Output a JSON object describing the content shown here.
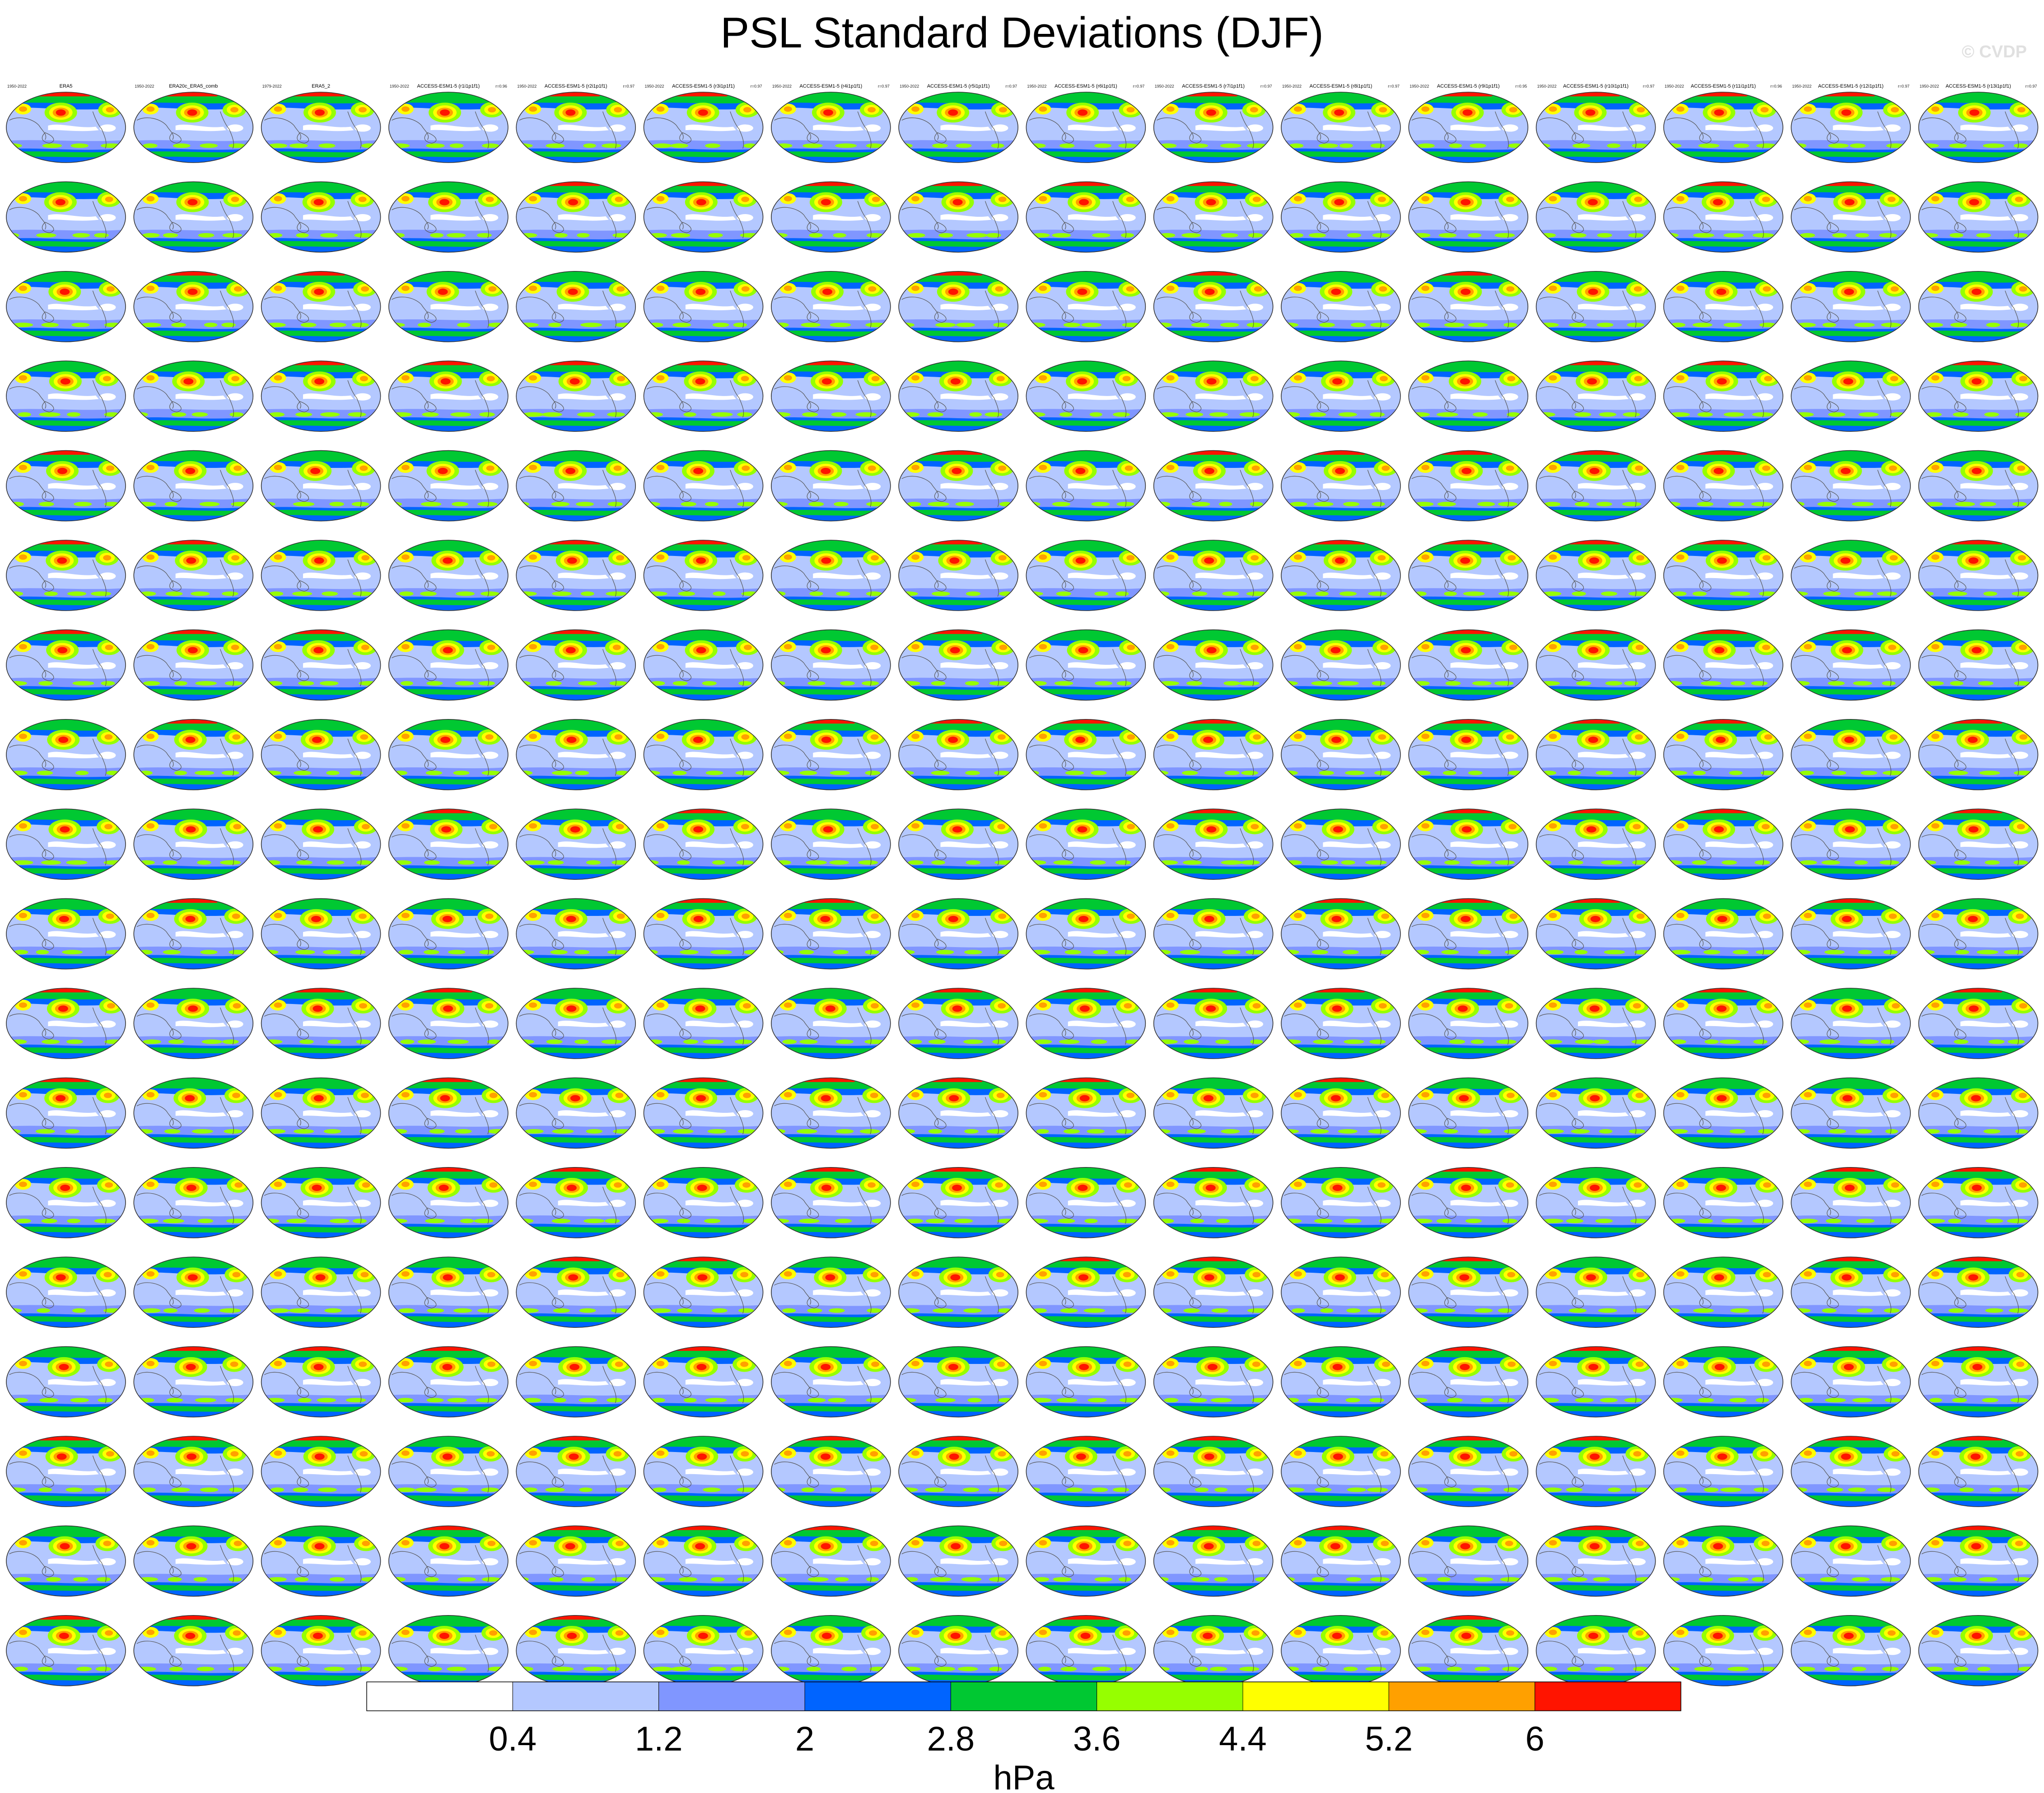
{
  "title": "PSL Standard Deviations (DJF)",
  "watermark": "© CVDP",
  "chart_data": {
    "type": "heatmap",
    "layout": "small-multiples grid of global map panels",
    "grid": {
      "rows": 18,
      "cols": 16
    },
    "year_range": "1950-2022",
    "panels_first_row": [
      {
        "title": "ERA5",
        "years": "1950-2022"
      },
      {
        "title": "ERA20c_ERA5_comb",
        "years": "1950-2022"
      },
      {
        "title": "ERA5_2",
        "years": "1979-2022"
      },
      {
        "title": "ACCESS-ESM1-5 (r1i1p1f1)",
        "years": "1950-2022",
        "r": "r=0.96"
      },
      {
        "title": "ACCESS-ESM1-5 (r2i1p1f1)",
        "years": "1950-2022",
        "r": "r=0.97"
      },
      {
        "title": "ACCESS-ESM1-5 (r3i1p1f1)",
        "years": "1950-2022",
        "r": "r=0.97"
      },
      {
        "title": "ACCESS-ESM1-5 (r4i1p1f1)",
        "years": "1950-2022",
        "r": "r=0.97"
      },
      {
        "title": "ACCESS-ESM1-5 (r5i1p1f1)",
        "years": "1950-2022",
        "r": "r=0.97"
      },
      {
        "title": "ACCESS-ESM1-5 (r6i1p1f1)",
        "years": "1950-2022",
        "r": "r=0.97"
      },
      {
        "title": "ACCESS-ESM1-5 (r7i1p1f1)",
        "years": "1950-2022",
        "r": "r=0.97"
      },
      {
        "title": "ACCESS-ESM1-5 (r8i1p1f1)",
        "years": "1950-2022",
        "r": "r=0.97"
      },
      {
        "title": "ACCESS-ESM1-5 (r9i1p1f1)",
        "years": "1950-2022",
        "r": "r=0.95"
      },
      {
        "title": "ACCESS-ESM1-5 (r10i1p1f1)",
        "years": "1950-2022",
        "r": "r=0.97"
      },
      {
        "title": "ACCESS-ESM1-5 (r11i1p1f1)",
        "years": "1950-2022",
        "r": "r=0.96"
      },
      {
        "title": "ACCESS-ESM1-5 (r12i1p1f1)",
        "years": "1950-2022",
        "r": "r=0.97"
      },
      {
        "title": "ACCESS-ESM1-5 (r13i1p1f1)",
        "years": "1950-2022",
        "r": "r=0.97"
      }
    ],
    "row_title_colors": [
      "#000000",
      "#1f9b2f",
      "#1f9b2f",
      "#33bb33",
      "#33bb33",
      "#33bb33",
      "#33bb33",
      "#e8a000",
      "#e8a000",
      "#cc0000",
      "#cc0000",
      "#cc0000",
      "#cc0000",
      "#cc0000",
      "#cc0000",
      "#cc0000",
      "#e8c800",
      "#e8c800"
    ],
    "colorbar": {
      "levels": [
        0.4,
        1.2,
        2,
        2.8,
        3.6,
        4.4,
        5.2,
        6
      ],
      "colors": [
        "#ffffff",
        "#b4c8ff",
        "#8096ff",
        "#0064ff",
        "#00c832",
        "#96ff00",
        "#ffff00",
        "#ffa000",
        "#ff1400"
      ],
      "unit": "hPa",
      "tick_labels": [
        "0.4",
        "1.2",
        "2",
        "2.8",
        "3.6",
        "4.4",
        "5.2",
        "6"
      ]
    }
  }
}
